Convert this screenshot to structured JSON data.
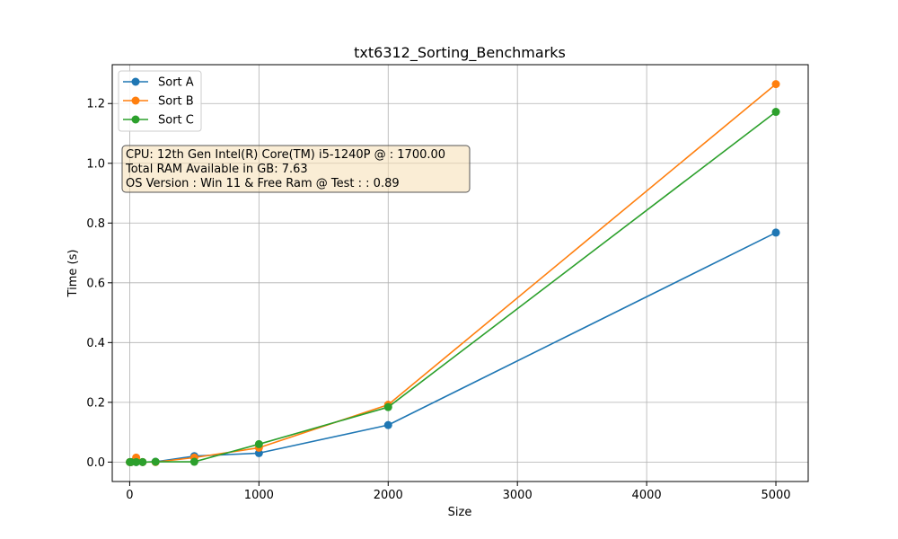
{
  "chart_data": {
    "type": "line",
    "title": "txt6312_Sorting_Benchmarks",
    "xlabel": "Size",
    "ylabel": "Time (s)",
    "xlim": [
      -135,
      5250
    ],
    "ylim": [
      -0.065,
      1.33
    ],
    "x_ticks": [
      0,
      1000,
      2000,
      3000,
      4000,
      5000
    ],
    "y_ticks": [
      0.0,
      0.2,
      0.4,
      0.6,
      0.8,
      1.0,
      1.2
    ],
    "x_tick_labels": [
      "0",
      "1000",
      "2000",
      "3000",
      "4000",
      "5000"
    ],
    "y_tick_labels": [
      "0.0",
      "0.2",
      "0.4",
      "0.6",
      "0.8",
      "1.0",
      "1.2"
    ],
    "grid": true,
    "legend_position": "upper-left",
    "x": [
      1,
      10,
      50,
      100,
      200,
      500,
      1000,
      2000,
      5000
    ],
    "series": [
      {
        "name": "Sort A",
        "color": "#1f77b4",
        "values": [
          0.0,
          0.0,
          0.0,
          0.0,
          0.001,
          0.02,
          0.03,
          0.124,
          0.768
        ]
      },
      {
        "name": "Sort B",
        "color": "#ff7f0e",
        "values": [
          0.0,
          0.0,
          0.015,
          0.0,
          0.0,
          0.015,
          0.048,
          0.192,
          1.265
        ]
      },
      {
        "name": "Sort C",
        "color": "#2ca02c",
        "values": [
          0.0,
          0.0,
          0.0,
          0.0,
          0.001,
          0.001,
          0.06,
          0.184,
          1.172
        ]
      }
    ],
    "annotation": {
      "lines": [
        "CPU: 12th Gen Intel(R) Core(TM) i5-1240P @ : 1700.00",
        "Total RAM Available in GB: 7.63",
        "OS Version : Win 11 & Free Ram @ Test : : 0.89"
      ],
      "background": "#f5deb3",
      "border": "#555555"
    }
  }
}
